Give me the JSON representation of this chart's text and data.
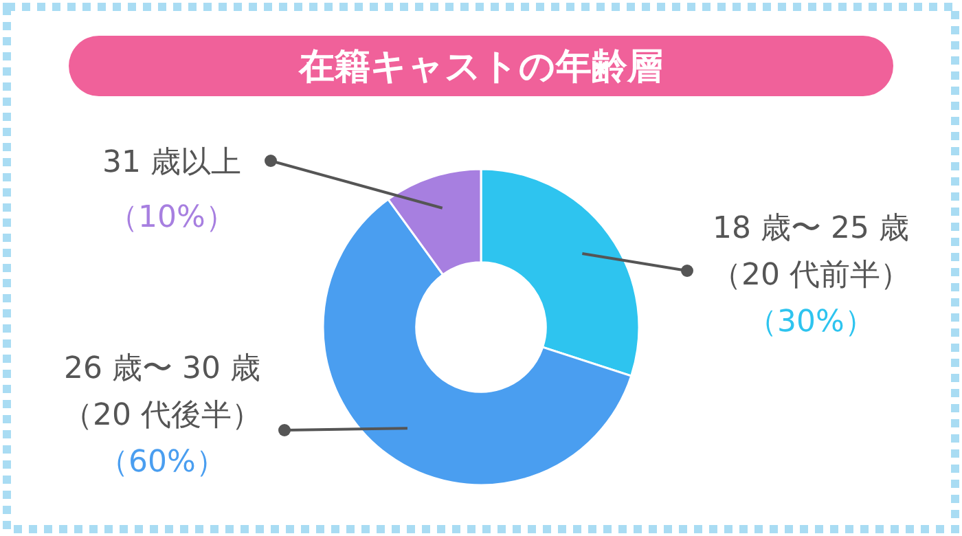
{
  "chart_data": {
    "type": "donut",
    "title": "在籍キャストの年齢層",
    "categories": [
      "18 歳〜 25 歳（20 代前半）",
      "26 歳〜 30 歳（20 代後半）",
      "31 歳以上"
    ],
    "values": [
      30,
      60,
      10
    ],
    "colors": [
      "#2ec4ef",
      "#4a9ef0",
      "#a77fe0"
    ],
    "value_labels": [
      "（30%）",
      "（60%）",
      "（10%）"
    ]
  }
}
